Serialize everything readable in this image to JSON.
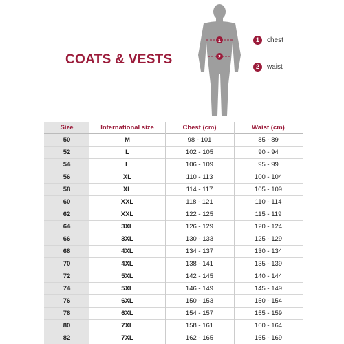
{
  "title": "COATS & VESTS",
  "legend": [
    {
      "number": "1",
      "label": "chest"
    },
    {
      "number": "2",
      "label": "waist"
    }
  ],
  "table": {
    "header": [
      "Size",
      "International size",
      "Chest (cm)",
      "Waist (cm)"
    ],
    "rows": [
      [
        "50",
        "M",
        "98 - 101",
        "85 - 89"
      ],
      [
        "52",
        "L",
        "102 - 105",
        "90 - 94"
      ],
      [
        "54",
        "L",
        "106 - 109",
        "95 - 99"
      ],
      [
        "56",
        "XL",
        "110 - 113",
        "100 - 104"
      ],
      [
        "58",
        "XL",
        "114 - 117",
        "105 - 109"
      ],
      [
        "60",
        "XXL",
        "118 - 121",
        "110 - 114"
      ],
      [
        "62",
        "XXL",
        "122 - 125",
        "115 - 119"
      ],
      [
        "64",
        "3XL",
        "126 - 129",
        "120 - 124"
      ],
      [
        "66",
        "3XL",
        "130 - 133",
        "125 - 129"
      ],
      [
        "68",
        "4XL",
        "134 - 137",
        "130 - 134"
      ],
      [
        "70",
        "4XL",
        "138 - 141",
        "135 - 139"
      ],
      [
        "72",
        "5XL",
        "142 - 145",
        "140 - 144"
      ],
      [
        "74",
        "5XL",
        "146 - 149",
        "145 - 149"
      ],
      [
        "76",
        "6XL",
        "150 - 153",
        "150 - 154"
      ],
      [
        "78",
        "6XL",
        "154 - 157",
        "155 - 159"
      ],
      [
        "80",
        "7XL",
        "158 - 161",
        "160 - 164"
      ],
      [
        "82",
        "7XL",
        "162 - 165",
        "165 - 169"
      ]
    ]
  }
}
